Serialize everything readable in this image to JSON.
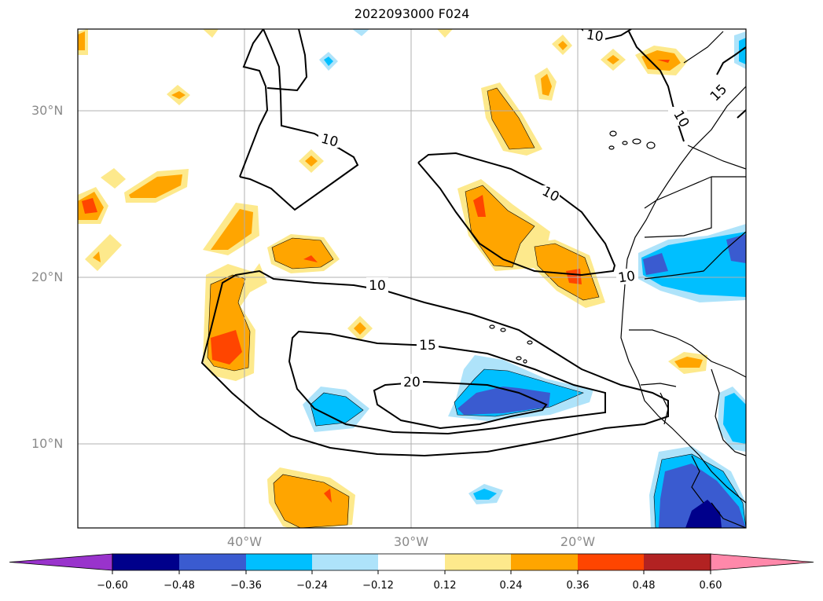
{
  "title": "2022093000 F024",
  "lat_labels": [
    "30°N",
    "20°N",
    "10°N"
  ],
  "lon_labels": [
    "40°W",
    "30°W",
    "20°W"
  ],
  "contour_labels": [
    "10",
    "10",
    "10",
    "10",
    "15",
    "20",
    "10",
    "15",
    "10"
  ],
  "colorbar": {
    "ticks": [
      "−0.60",
      "−0.48",
      "−0.36",
      "−0.24",
      "−0.12",
      "0.12",
      "0.24",
      "0.36",
      "0.48",
      "0.60"
    ],
    "colors": [
      "#9933cc",
      "#00008b",
      "#3a5bd0",
      "#00bfff",
      "#aee3fa",
      "#ffffff",
      "#fde98c",
      "#ffa500",
      "#ff4500",
      "#b22222",
      "#ff88aa"
    ]
  }
}
